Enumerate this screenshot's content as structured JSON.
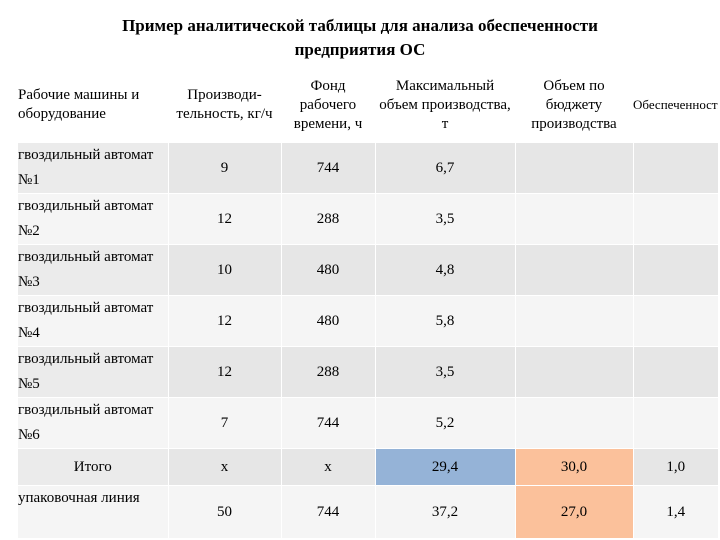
{
  "title_line1": "Пример аналитической таблицы для анализа обеспеченности",
  "title_line2": "предприятия ОС",
  "headers": [
    "Рабочие машины и оборудование",
    "Производи-тельность, кг/ч",
    "Фонд рабочего времени, ч",
    "Максимальный объем производства, т",
    "Объем по бюджету производства",
    "Обеспеченность"
  ],
  "rows": [
    {
      "name": "гвоздильный автомат №1",
      "c1": "9",
      "c2": "744",
      "c3": "6,7",
      "c4": "",
      "c5": ""
    },
    {
      "name": "гвоздильный автомат №2",
      "c1": "12",
      "c2": "288",
      "c3": "3,5",
      "c4": "",
      "c5": ""
    },
    {
      "name": "гвоздильный автомат №3",
      "c1": "10",
      "c2": "480",
      "c3": "4,8",
      "c4": "",
      "c5": ""
    },
    {
      "name": "гвоздильный автомат №4",
      "c1": "12",
      "c2": "480",
      "c3": "5,8",
      "c4": "",
      "c5": ""
    },
    {
      "name": "гвоздильный автомат №5",
      "c1": "12",
      "c2": "288",
      "c3": "3,5",
      "c4": "",
      "c5": ""
    },
    {
      "name": "гвоздильный автомат №6",
      "c1": "7",
      "c2": "744",
      "c3": "5,2",
      "c4": "",
      "c5": ""
    },
    {
      "name": "Итого",
      "c1": "х",
      "c2": "х",
      "c3": "29,4",
      "c4": "30,0",
      "c5": "1,0"
    },
    {
      "name": "упаковочная линия",
      "c1": "50",
      "c2": "744",
      "c3": "37,2",
      "c4": "27,0",
      "c5": "1,4"
    }
  ],
  "colors": {
    "highlight_blue": "#95b3d7",
    "highlight_peach": "#fbc19b"
  }
}
